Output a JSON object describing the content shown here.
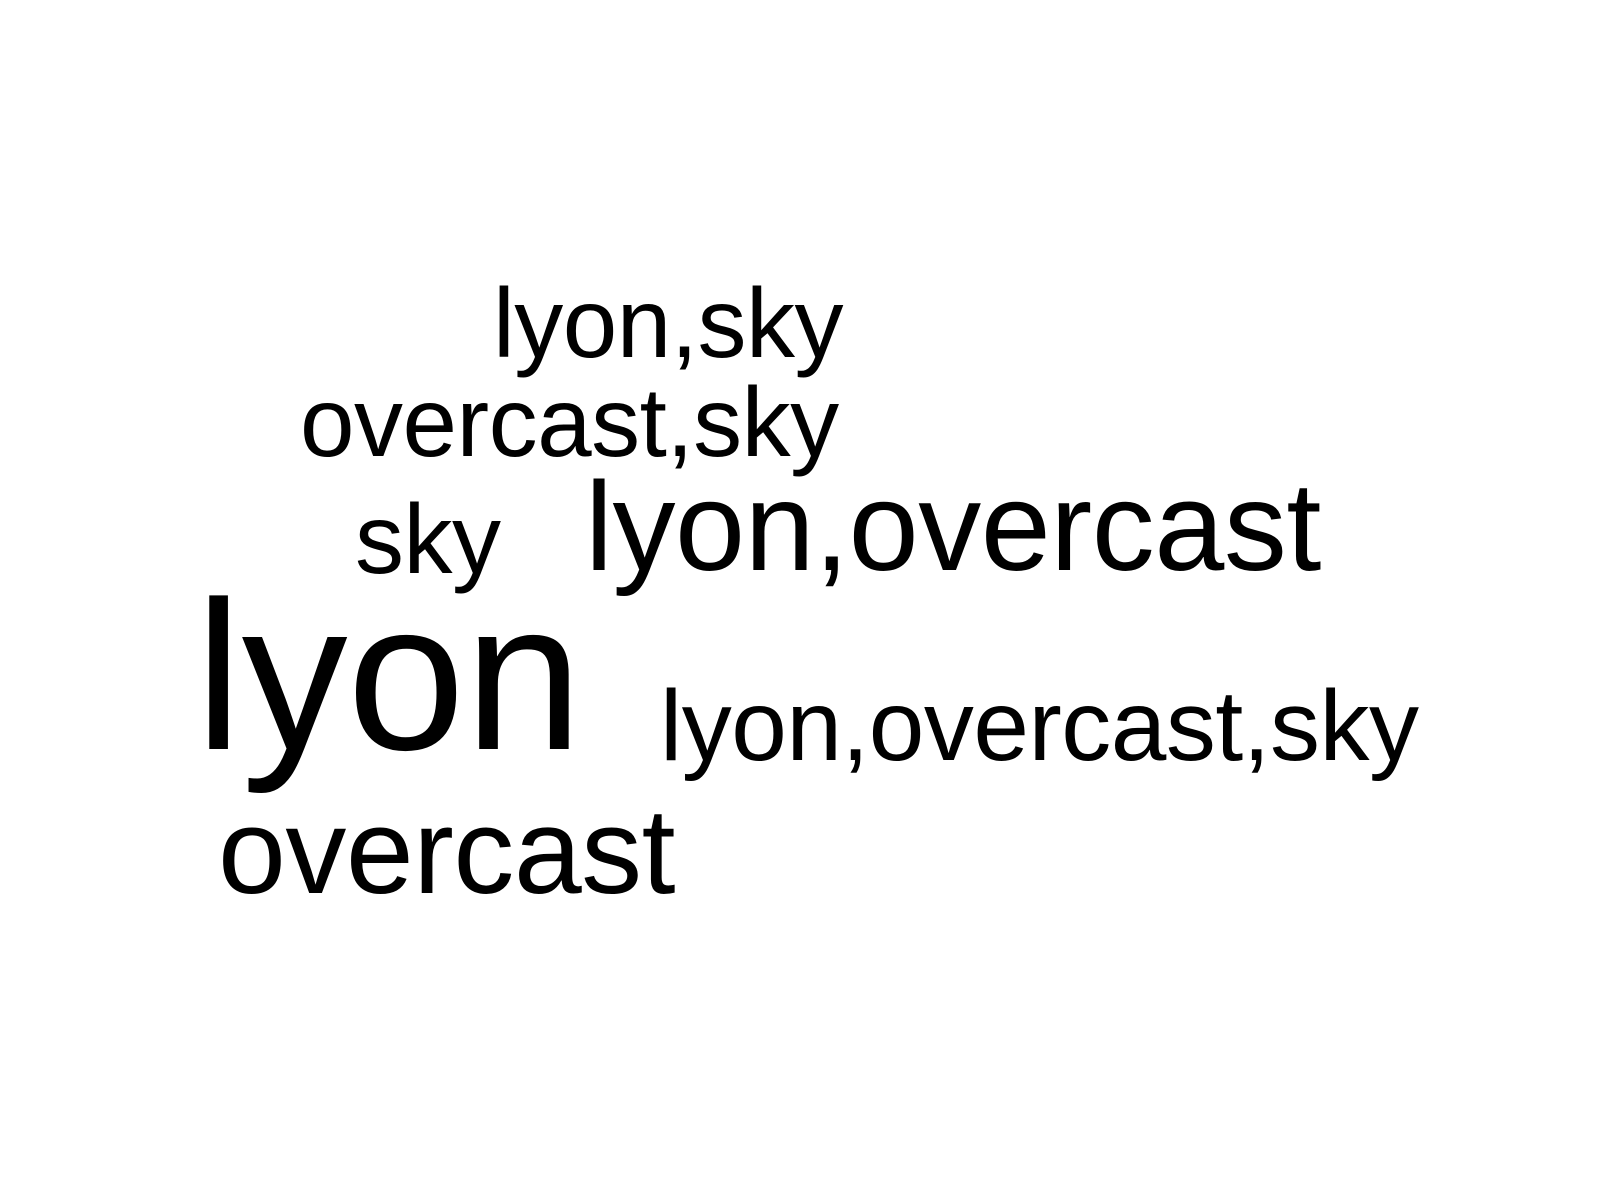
{
  "words": [
    {
      "text": "lyon,sky"
    },
    {
      "text": "overcast,sky"
    },
    {
      "text": "sky"
    },
    {
      "text": "lyon,overcast"
    },
    {
      "text": "lyon"
    },
    {
      "text": "lyon,overcast,sky"
    },
    {
      "text": "overcast"
    }
  ],
  "colors": {
    "background": "#ffffff",
    "text": "#000000"
  }
}
